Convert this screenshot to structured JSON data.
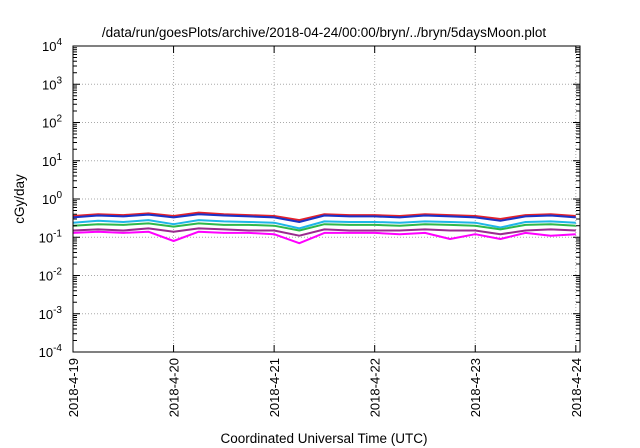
{
  "chart_data": {
    "type": "line",
    "title": "/data/run/goesPlots/archive/2018-04-24/00:00/bryn/../bryn/5daysMoon.plot",
    "xlabel": "Coordinated Universal Time (UTC)",
    "ylabel": "cGy/day",
    "yscale": "log",
    "ylim": [
      0.0001,
      10000
    ],
    "xlim": [
      "2018-04-19 00:00",
      "2018-04-24 01:00"
    ],
    "grid": true,
    "x_ticks": [
      "2018-4-19",
      "2018-4-20",
      "2018-4-21",
      "2018-4-22",
      "2018-4-23",
      "2018-4-24"
    ],
    "y_ticks": [
      {
        "base": "10",
        "exp": "-4"
      },
      {
        "base": "10",
        "exp": "-3"
      },
      {
        "base": "10",
        "exp": "-2"
      },
      {
        "base": "10",
        "exp": "-1"
      },
      {
        "base": "10",
        "exp": "0"
      },
      {
        "base": "10",
        "exp": "1"
      },
      {
        "base": "10",
        "exp": "2"
      },
      {
        "base": "10",
        "exp": "3"
      },
      {
        "base": "10",
        "exp": "4"
      }
    ],
    "x": [
      "2018-04-19 00:00",
      "2018-04-19 06:00",
      "2018-04-19 12:00",
      "2018-04-19 18:00",
      "2018-04-20 00:00",
      "2018-04-20 06:00",
      "2018-04-20 12:00",
      "2018-04-20 18:00",
      "2018-04-21 00:00",
      "2018-04-21 06:00",
      "2018-04-21 12:00",
      "2018-04-21 18:00",
      "2018-04-22 00:00",
      "2018-04-22 06:00",
      "2018-04-22 12:00",
      "2018-04-22 18:00",
      "2018-04-23 00:00",
      "2018-04-23 06:00",
      "2018-04-23 12:00",
      "2018-04-23 18:00",
      "2018-04-24 00:00"
    ],
    "series": [
      {
        "color": "#e4212b",
        "values": [
          0.36,
          0.4,
          0.38,
          0.42,
          0.36,
          0.44,
          0.4,
          0.38,
          0.36,
          0.28,
          0.4,
          0.38,
          0.38,
          0.36,
          0.4,
          0.38,
          0.36,
          0.3,
          0.38,
          0.4,
          0.36
        ]
      },
      {
        "color": "#1a33c8",
        "values": [
          0.33,
          0.37,
          0.35,
          0.39,
          0.33,
          0.4,
          0.37,
          0.35,
          0.33,
          0.25,
          0.37,
          0.35,
          0.35,
          0.33,
          0.37,
          0.35,
          0.33,
          0.27,
          0.35,
          0.37,
          0.33
        ]
      },
      {
        "color": "#1fb5e8",
        "values": [
          0.24,
          0.27,
          0.25,
          0.28,
          0.22,
          0.28,
          0.26,
          0.25,
          0.24,
          0.17,
          0.26,
          0.25,
          0.25,
          0.24,
          0.26,
          0.25,
          0.24,
          0.18,
          0.25,
          0.26,
          0.24
        ]
      },
      {
        "color": "#2eb84a",
        "values": [
          0.2,
          0.22,
          0.21,
          0.23,
          0.19,
          0.23,
          0.21,
          0.21,
          0.2,
          0.15,
          0.22,
          0.21,
          0.21,
          0.2,
          0.22,
          0.21,
          0.2,
          0.16,
          0.21,
          0.22,
          0.2
        ]
      },
      {
        "color": "#9a2a8f",
        "values": [
          0.15,
          0.16,
          0.15,
          0.17,
          0.14,
          0.17,
          0.16,
          0.15,
          0.15,
          0.11,
          0.16,
          0.15,
          0.15,
          0.15,
          0.16,
          0.15,
          0.15,
          0.12,
          0.15,
          0.16,
          0.15
        ]
      },
      {
        "color": "#ff00ff",
        "values": [
          0.13,
          0.14,
          0.13,
          0.14,
          0.08,
          0.14,
          0.13,
          0.13,
          0.12,
          0.07,
          0.13,
          0.13,
          0.13,
          0.12,
          0.13,
          0.09,
          0.12,
          0.09,
          0.13,
          0.11,
          0.12
        ]
      }
    ]
  }
}
